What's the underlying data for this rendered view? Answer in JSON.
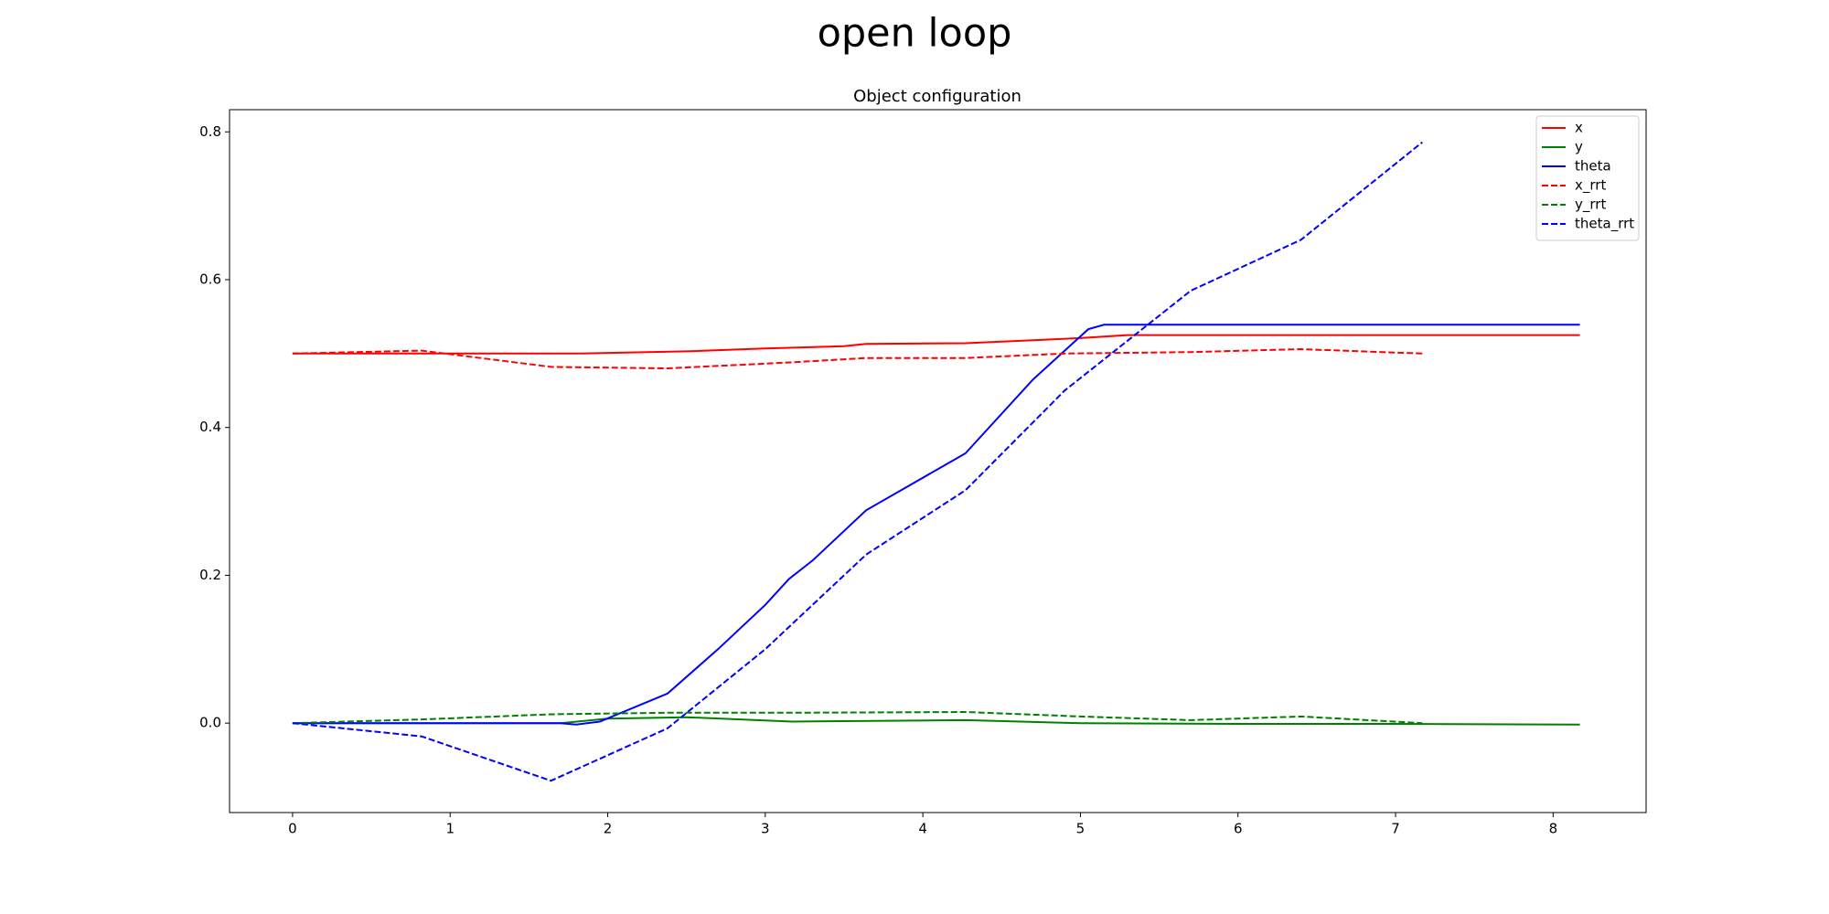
{
  "chart_data": {
    "type": "line",
    "suptitle": "open loop",
    "title": "Object configuration",
    "xlim": [
      -0.4,
      8.59
    ],
    "ylim": [
      -0.121,
      0.83
    ],
    "xticks": [
      0,
      1,
      2,
      3,
      4,
      5,
      6,
      7,
      8
    ],
    "yticks": [
      {
        "value": 0,
        "label": "0.0"
      },
      {
        "value": 0.2,
        "label": "0.2"
      },
      {
        "value": 0.4,
        "label": "0.4"
      },
      {
        "value": 0.6,
        "label": "0.6"
      },
      {
        "value": 0.8,
        "label": "0.8"
      }
    ],
    "legend": "upper right",
    "grid": false,
    "series": [
      {
        "name": "x",
        "color": "#ff0000",
        "dashed": false,
        "x": [
          0,
          1,
          1.8,
          2.5,
          3.0,
          3.5,
          3.64,
          4.27,
          4.7,
          5.0,
          5.3,
          6,
          7,
          8.17
        ],
        "values": [
          0.5,
          0.5,
          0.5,
          0.503,
          0.507,
          0.51,
          0.513,
          0.514,
          0.518,
          0.521,
          0.525,
          0.525,
          0.525,
          0.525
        ]
      },
      {
        "name": "y",
        "color": "#008000",
        "dashed": false,
        "x": [
          0,
          1.7,
          2.0,
          2.5,
          3.17,
          4.27,
          5.0,
          6,
          7,
          8.17
        ],
        "values": [
          0,
          0,
          0.006,
          0.008,
          0.002,
          0.004,
          0,
          -0.001,
          -0.001,
          -0.002
        ]
      },
      {
        "name": "theta",
        "color": "#0000ff",
        "dashed": false,
        "x": [
          0,
          1.7,
          1.8,
          1.95,
          2.38,
          2.7,
          3.0,
          3.15,
          3.3,
          3.64,
          4.27,
          4.7,
          5.05,
          5.15,
          6,
          7,
          8.17
        ],
        "values": [
          0,
          0,
          -0.002,
          0.002,
          0.04,
          0.1,
          0.16,
          0.195,
          0.22,
          0.288,
          0.365,
          0.465,
          0.533,
          0.539,
          0.539,
          0.539,
          0.539
        ]
      },
      {
        "name": "x_rrt",
        "color": "#ff0000",
        "dashed": true,
        "x": [
          0,
          0.82,
          1.64,
          2.38,
          3.16,
          3.64,
          4.27,
          4.9,
          5.7,
          6.4,
          7.17
        ],
        "values": [
          0.5,
          0.504,
          0.482,
          0.48,
          0.488,
          0.494,
          0.494,
          0.5,
          0.502,
          0.506,
          0.5
        ]
      },
      {
        "name": "y_rrt",
        "color": "#008000",
        "dashed": true,
        "x": [
          0,
          0.82,
          1.64,
          2.38,
          3.16,
          4.27,
          5.0,
          5.7,
          6.4,
          7.17
        ],
        "values": [
          0,
          0.005,
          0.012,
          0.014,
          0.014,
          0.015,
          0.009,
          0.004,
          0.009,
          0
        ]
      },
      {
        "name": "theta_rrt",
        "color": "#0000ff",
        "dashed": true,
        "x": [
          0,
          0.82,
          1.64,
          2.38,
          3.0,
          3.64,
          4.27,
          4.9,
          5.7,
          6.4,
          7.17
        ],
        "values": [
          0,
          -0.018,
          -0.078,
          -0.007,
          0.1,
          0.228,
          0.315,
          0.45,
          0.585,
          0.654,
          0.786
        ]
      }
    ]
  }
}
